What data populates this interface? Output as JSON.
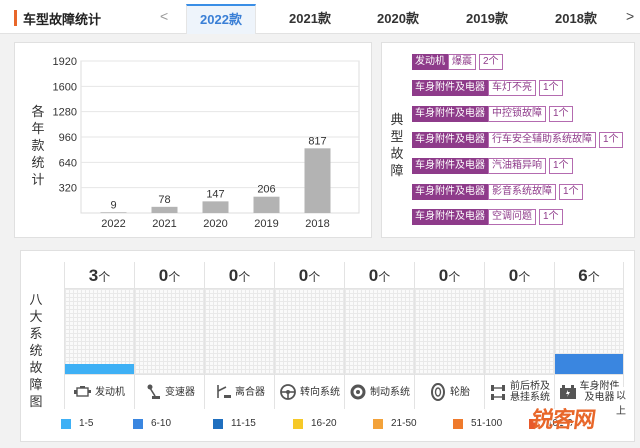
{
  "header": {
    "title": "车型故障统计",
    "prev_arrow": "<",
    "next_arrow": ">",
    "tabs": [
      {
        "label": "2022款",
        "active": true
      },
      {
        "label": "2021款",
        "active": false
      },
      {
        "label": "2020款",
        "active": false
      },
      {
        "label": "2019款",
        "active": false
      },
      {
        "label": "2018款",
        "active": false
      }
    ]
  },
  "chart_panel": {
    "ylabel_chars": [
      "各",
      "年",
      "款",
      "统",
      "计"
    ]
  },
  "chart_data": {
    "type": "bar",
    "categories": [
      "2022",
      "2021",
      "2020",
      "2019",
      "2018"
    ],
    "values": [
      9,
      78,
      147,
      206,
      817
    ],
    "yticks": [
      320,
      640,
      960,
      1280,
      1600,
      1920
    ],
    "ylim": [
      0,
      1920
    ],
    "title": "",
    "xlabel": "",
    "ylabel": "各年款统计",
    "bar_color": "#b3b3b3",
    "grid": true
  },
  "faults_panel": {
    "label_chars": [
      "典",
      "型",
      "故",
      "障"
    ],
    "items": [
      {
        "category": "发动机",
        "name": "爆震",
        "count": "2个"
      },
      {
        "category": "车身附件及电器",
        "name": "车灯不亮",
        "count": "1个"
      },
      {
        "category": "车身附件及电器",
        "name": "中控锁故障",
        "count": "1个"
      },
      {
        "category": "车身附件及电器",
        "name": "行车安全辅助系统故障",
        "count": "1个"
      },
      {
        "category": "车身附件及电器",
        "name": "汽油箱异响",
        "count": "1个"
      },
      {
        "category": "车身附件及电器",
        "name": "影音系统故障",
        "count": "1个"
      },
      {
        "category": "车身附件及电器",
        "name": "空调问题",
        "count": "1个"
      }
    ]
  },
  "systems_panel": {
    "label_chars": [
      "八",
      "大",
      "系",
      "统",
      "故",
      "障",
      "图"
    ],
    "systems": [
      {
        "count": "3",
        "unit": "个",
        "name_lines": [
          "发动机"
        ],
        "icon": "engine-icon",
        "level": 0.12,
        "color": "#3eb0f5"
      },
      {
        "count": "0",
        "unit": "个",
        "name_lines": [
          "变速器"
        ],
        "icon": "gear-shift-icon",
        "level": 0,
        "color": "#3eb0f5"
      },
      {
        "count": "0",
        "unit": "个",
        "name_lines": [
          "离合器"
        ],
        "icon": "clutch-pedal-icon",
        "level": 0,
        "color": "#3eb0f5"
      },
      {
        "count": "0",
        "unit": "个",
        "name_lines": [
          "转向系统"
        ],
        "icon": "steering-wheel-icon",
        "level": 0,
        "color": "#3eb0f5"
      },
      {
        "count": "0",
        "unit": "个",
        "name_lines": [
          "制动系统"
        ],
        "icon": "brake-disc-icon",
        "level": 0,
        "color": "#3eb0f5"
      },
      {
        "count": "0",
        "unit": "个",
        "name_lines": [
          "轮胎"
        ],
        "icon": "tire-icon",
        "level": 0,
        "color": "#3eb0f5"
      },
      {
        "count": "0",
        "unit": "个",
        "name_lines": [
          "前后桥及",
          "悬挂系统"
        ],
        "icon": "suspension-icon",
        "level": 0,
        "color": "#3eb0f5"
      },
      {
        "count": "6",
        "unit": "个",
        "name_lines": [
          "车身附件",
          "及电器"
        ],
        "icon": "battery-icon",
        "level": 0.24,
        "color": "#3a86e0"
      }
    ],
    "legend": [
      {
        "label": "1-5",
        "color": "#3eb0f5"
      },
      {
        "label": "6-10",
        "color": "#3a86e0"
      },
      {
        "label": "11-15",
        "color": "#1f6fbf"
      },
      {
        "label": "16-20",
        "color": "#f6c928"
      },
      {
        "label": "21-50",
        "color": "#f3a23a"
      },
      {
        "label": "51-100",
        "color": "#ef7a2c"
      },
      {
        "label": "101-3",
        "color": "#e8592a"
      }
    ],
    "overflow_text": "以上"
  },
  "watermark": "锐客网"
}
